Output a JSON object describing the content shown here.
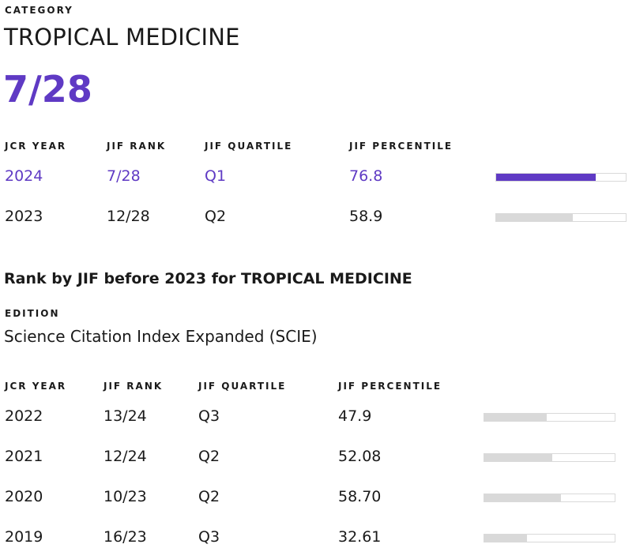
{
  "category": {
    "eyebrow": "CATEGORY",
    "name": "TROPICAL MEDICINE",
    "rank": "7/28"
  },
  "current": {
    "headers": {
      "year": "JCR YEAR",
      "rank": "JIF RANK",
      "quartile": "JIF QUARTILE",
      "percentile": "JIF PERCENTILE"
    },
    "rows": [
      {
        "year": "2024",
        "rank": "7/28",
        "quartile": "Q1",
        "percentile": "76.8",
        "percentile_value": 76.8
      },
      {
        "year": "2023",
        "rank": "12/28",
        "quartile": "Q2",
        "percentile": "58.9",
        "percentile_value": 58.9
      }
    ]
  },
  "prior": {
    "title": "Rank by JIF before 2023 for TROPICAL MEDICINE",
    "edition_label": "EDITION",
    "edition_name": "Science Citation Index Expanded (SCIE)",
    "headers": {
      "year": "JCR YEAR",
      "rank": "JIF RANK",
      "quartile": "JIF QUARTILE",
      "percentile": "JIF PERCENTILE"
    },
    "rows": [
      {
        "year": "2022",
        "rank": "13/24",
        "quartile": "Q3",
        "percentile": "47.9",
        "percentile_value": 47.9
      },
      {
        "year": "2021",
        "rank": "12/24",
        "quartile": "Q2",
        "percentile": "52.08",
        "percentile_value": 52.08
      },
      {
        "year": "2020",
        "rank": "10/23",
        "quartile": "Q2",
        "percentile": "58.70",
        "percentile_value": 58.7
      },
      {
        "year": "2019",
        "rank": "16/23",
        "quartile": "Q3",
        "percentile": "32.61",
        "percentile_value": 32.61
      }
    ]
  },
  "colors": {
    "accent": "#5f3ac4",
    "bar_track": "#d9d9d9"
  }
}
